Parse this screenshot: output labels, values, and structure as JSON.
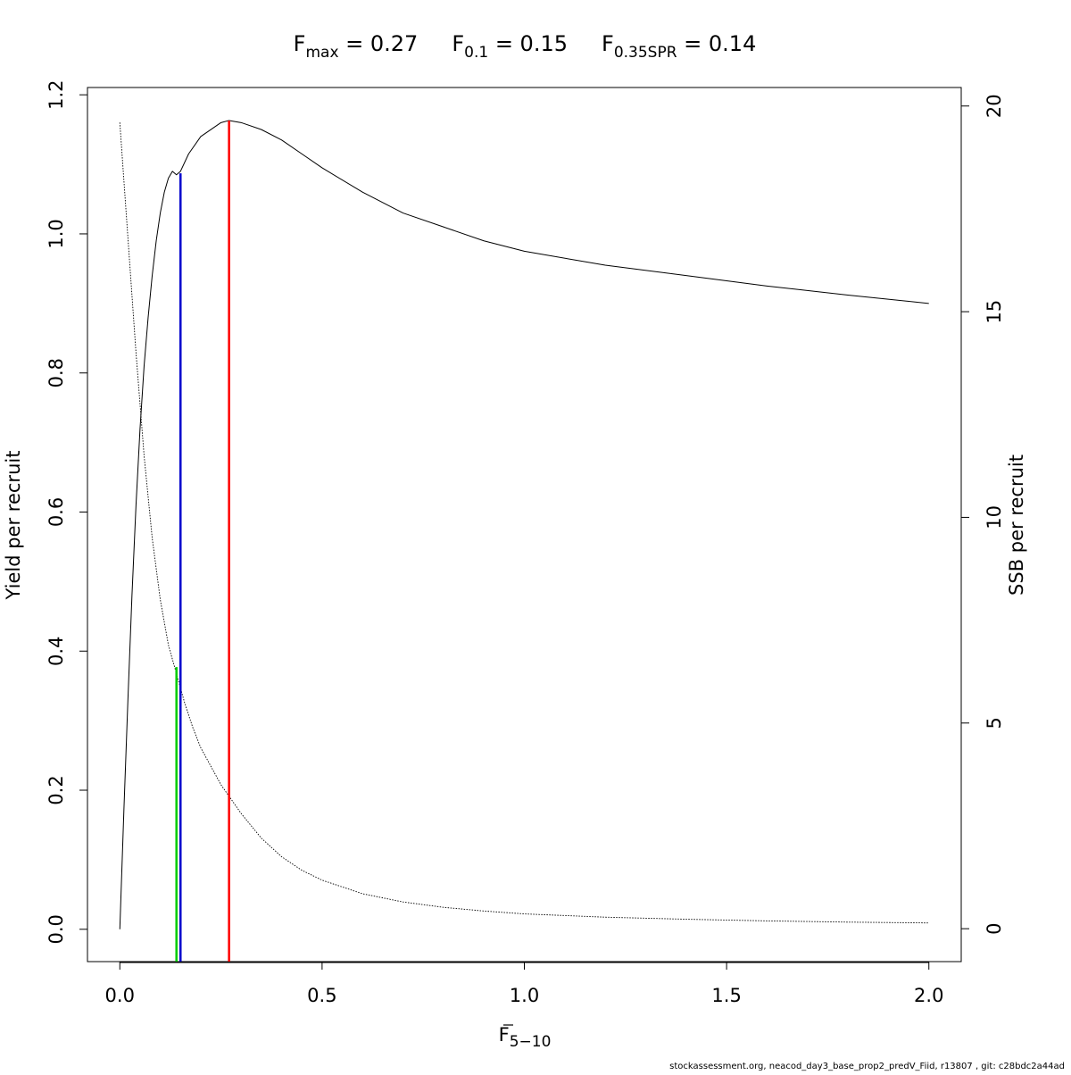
{
  "title": {
    "items": [
      {
        "main": "F",
        "sub": "max",
        "rest": " = 0.27"
      },
      {
        "main": "F",
        "sub": "0.1",
        "rest": " = 0.15"
      },
      {
        "main": "F",
        "sub": "0.35SPR",
        "rest": " = 0.14"
      }
    ]
  },
  "footer": "stockassessment.org, neacod_day3_base_prop2_predV_Fiid, r13807 , git: c28bdc2a44ad",
  "colors": {
    "fmax": "#ff0000",
    "f01": "#0000cd",
    "f035spr": "#00cd00",
    "curve": "#000000"
  },
  "chart_data": {
    "type": "line",
    "x_axis": {
      "label_main": "F",
      "label_sub": "5−10",
      "label_overline": true,
      "range": [
        -0.08,
        2.08
      ],
      "ticks": [
        0.0,
        0.5,
        1.0,
        1.5,
        2.0
      ],
      "tick_labels": [
        "0.0",
        "0.5",
        "1.0",
        "1.5",
        "2.0"
      ]
    },
    "y_axis_left": {
      "label": "Yield per recruit",
      "range": [
        -0.0465,
        1.2105
      ],
      "ticks": [
        0.0,
        0.2,
        0.4,
        0.6,
        0.8,
        1.0,
        1.2
      ],
      "tick_labels": [
        "0.0",
        "0.2",
        "0.4",
        "0.6",
        "0.8",
        "1.0",
        "1.2"
      ]
    },
    "y_axis_right": {
      "label": "SSB per recruit",
      "range": [
        -0.8,
        20.45
      ],
      "ticks": [
        0,
        5,
        10,
        15,
        20
      ],
      "tick_labels": [
        "0",
        "5",
        "10",
        "15",
        "20"
      ]
    },
    "series": [
      {
        "axis": "left",
        "style": "solid",
        "x": [
          0.0,
          0.01,
          0.02,
          0.03,
          0.04,
          0.05,
          0.06,
          0.07,
          0.08,
          0.09,
          0.1,
          0.11,
          0.12,
          0.13,
          0.14,
          0.15,
          0.17,
          0.2,
          0.25,
          0.27,
          0.3,
          0.35,
          0.4,
          0.45,
          0.5,
          0.6,
          0.7,
          0.8,
          0.9,
          1.0,
          1.2,
          1.4,
          1.6,
          1.8,
          2.0
        ],
        "y": [
          0.0,
          0.17,
          0.33,
          0.48,
          0.61,
          0.72,
          0.81,
          0.88,
          0.94,
          0.99,
          1.03,
          1.06,
          1.08,
          1.09,
          1.085,
          1.09,
          1.115,
          1.14,
          1.16,
          1.163,
          1.16,
          1.15,
          1.135,
          1.115,
          1.095,
          1.06,
          1.03,
          1.01,
          0.99,
          0.975,
          0.955,
          0.94,
          0.925,
          0.912,
          0.9
        ]
      },
      {
        "axis": "right",
        "style": "dotted",
        "x": [
          0.0,
          0.02,
          0.04,
          0.06,
          0.08,
          0.1,
          0.12,
          0.14,
          0.16,
          0.18,
          0.2,
          0.25,
          0.3,
          0.35,
          0.4,
          0.45,
          0.5,
          0.6,
          0.7,
          0.8,
          0.9,
          1.0,
          1.2,
          1.4,
          1.6,
          1.8,
          2.0
        ],
        "y": [
          19.6,
          16.8,
          14.0,
          11.5,
          9.5,
          8.0,
          6.9,
          6.2,
          5.5,
          4.9,
          4.4,
          3.5,
          2.8,
          2.2,
          1.75,
          1.42,
          1.18,
          0.85,
          0.65,
          0.52,
          0.43,
          0.36,
          0.28,
          0.23,
          0.19,
          0.16,
          0.14
        ]
      }
    ],
    "reference_lines": [
      {
        "name": "Fmax",
        "x": 0.27,
        "y_top": 1.163,
        "color": "#ff0000"
      },
      {
        "name": "F0.1",
        "x": 0.15,
        "y_top": 1.087,
        "color": "#0000cd"
      },
      {
        "name": "F0.35SPR",
        "x": 0.14,
        "y_top": 0.377,
        "color": "#00cd00"
      }
    ]
  }
}
